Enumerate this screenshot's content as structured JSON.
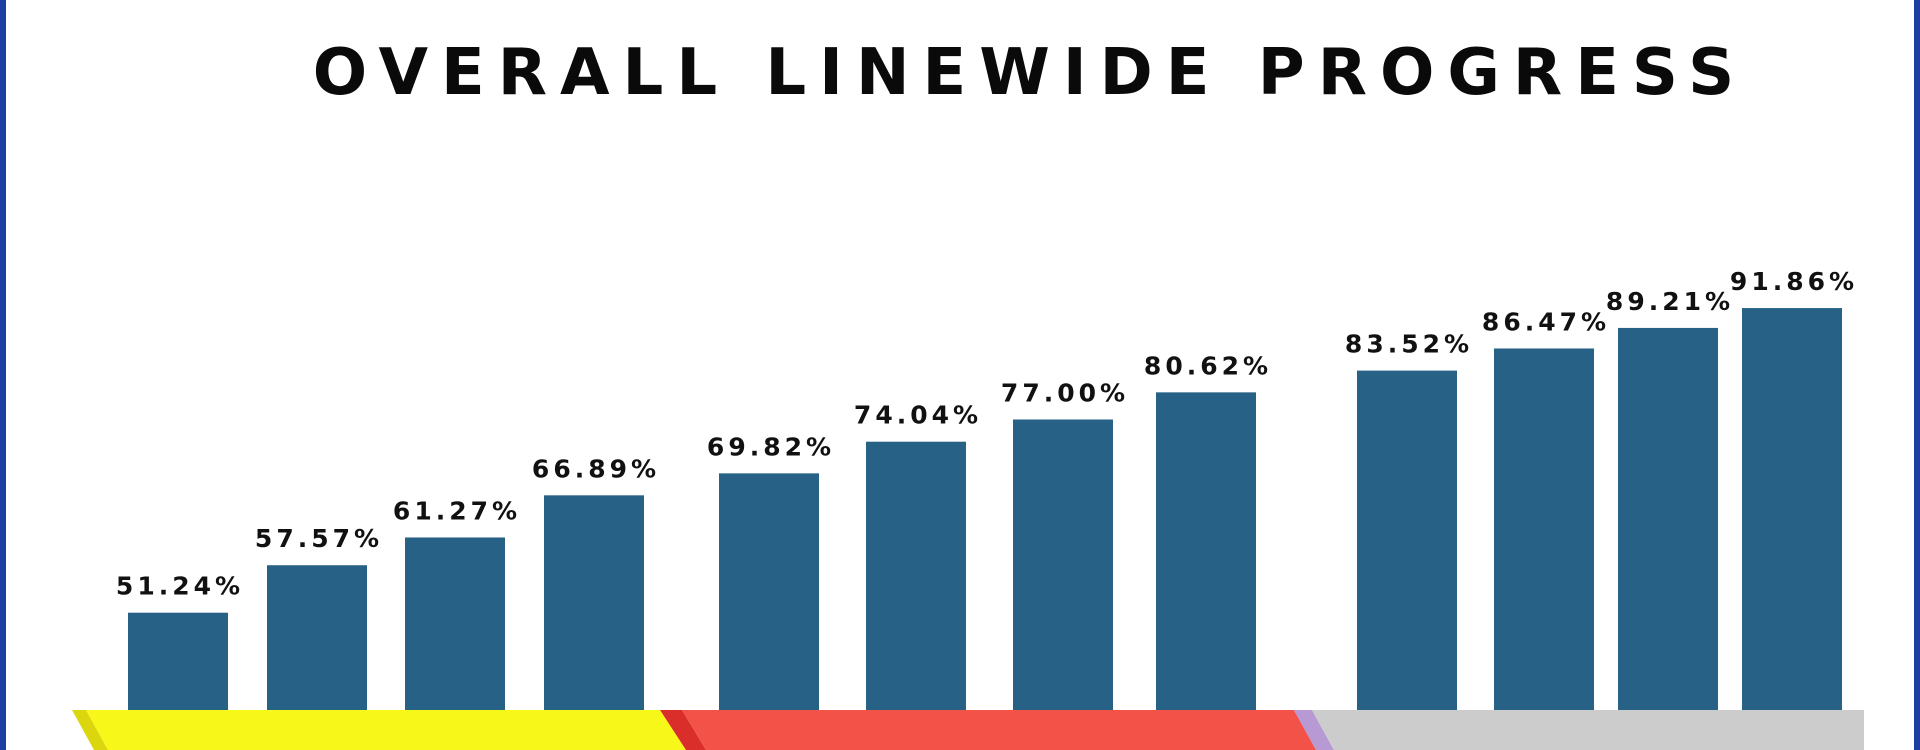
{
  "title": "OVERALL LINEWIDE PROGRESS",
  "chart_data": {
    "type": "bar",
    "title": "OVERALL LINEWIDE PROGRESS",
    "categories": [
      "",
      "",
      "",
      "",
      "",
      "",
      "",
      "",
      "",
      "",
      "",
      ""
    ],
    "values": [
      51.24,
      57.57,
      61.27,
      66.89,
      69.82,
      74.04,
      77.0,
      80.62,
      83.52,
      86.47,
      89.21,
      91.86
    ],
    "data_labels": [
      "51.24%",
      "57.57%",
      "61.27%",
      "66.89%",
      "69.82%",
      "74.04%",
      "77.00%",
      "80.62%",
      "83.52%",
      "86.47%",
      "89.21%",
      "91.86%"
    ],
    "bar_color": "#276185",
    "groups": [
      {
        "bars": 4,
        "band_color": "#f7f71a"
      },
      {
        "bars": 4,
        "band_color": "#f25248"
      },
      {
        "bars": 4,
        "band_color": "#cccccc"
      }
    ],
    "xlabel": "",
    "ylabel": "",
    "grid": false,
    "legend": "none"
  },
  "colors": {
    "frame": "#1c3ea3",
    "bar": "#276185",
    "band_yellow": "#f7f71a",
    "band_red": "#f25248",
    "band_grey": "#cccccc",
    "band_accent_yellow": "#dcd60f",
    "band_accent_red": "#d92e2a",
    "band_accent_purple": "#b79ad4"
  }
}
